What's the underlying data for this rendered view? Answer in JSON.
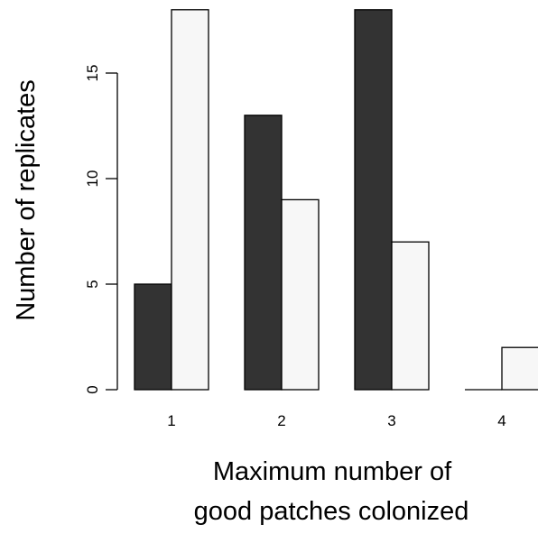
{
  "chart_data": {
    "type": "bar",
    "categories": [
      "1",
      "2",
      "3",
      "4"
    ],
    "series": [
      {
        "values": [
          5,
          13,
          18,
          0
        ],
        "color": "#333333"
      },
      {
        "values": [
          18,
          9,
          7,
          2
        ],
        "color": "#f7f7f7"
      }
    ],
    "y_ticks": [
      "0",
      "5",
      "10",
      "15"
    ],
    "ylim": [
      0,
      18
    ],
    "xlabel_lines": [
      "Maximum number of",
      "good patches colonized"
    ],
    "ylabel": "Number of replicates",
    "grid": false,
    "legend": "none",
    "bar_border_color": "#000000"
  }
}
